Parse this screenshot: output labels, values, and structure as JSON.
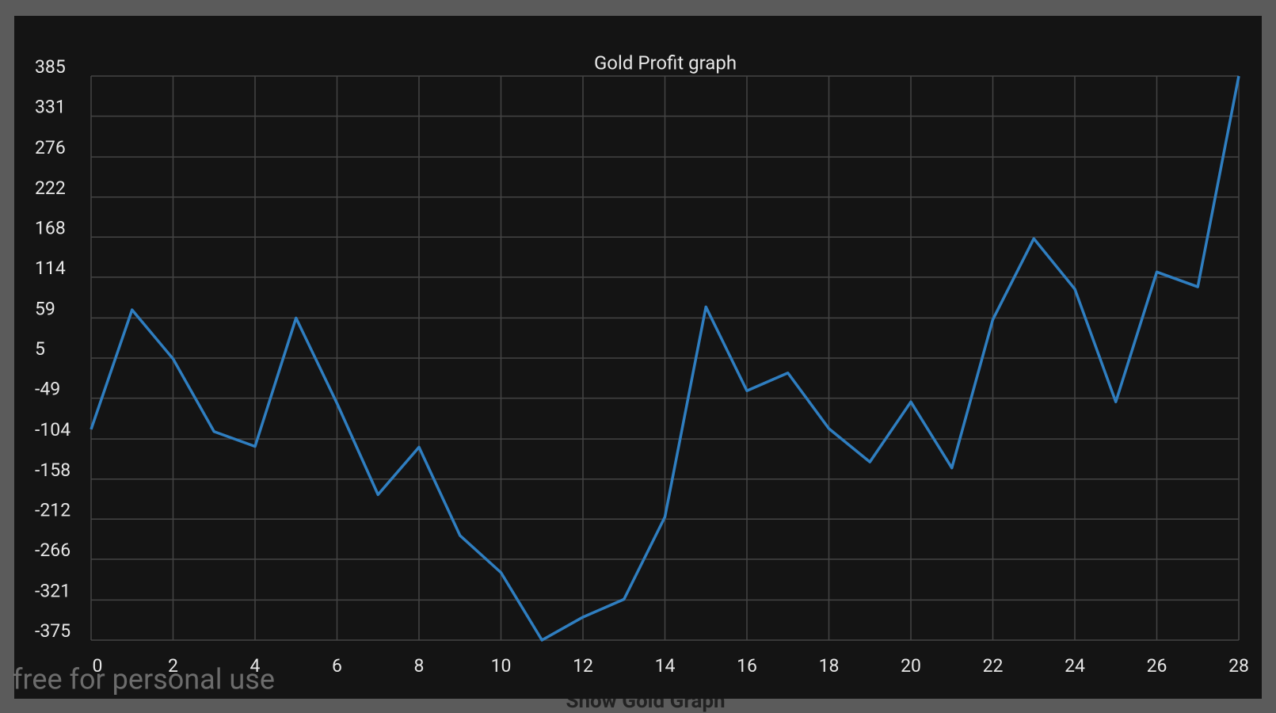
{
  "chart_data": {
    "type": "line",
    "title": "Gold Profit graph",
    "x": [
      0,
      1,
      2,
      3,
      4,
      5,
      6,
      7,
      8,
      9,
      10,
      11,
      12,
      13,
      14,
      15,
      16,
      17,
      18,
      19,
      20,
      21,
      22,
      23,
      24,
      25,
      26,
      27,
      28
    ],
    "series": [
      {
        "name": "Gold Profit",
        "color": "#2f7ec0",
        "values": [
          -91,
          70,
          4,
          -94,
          -114,
          59,
          -56,
          -179,
          -115,
          -234,
          -284,
          -375,
          -344,
          -320,
          -209,
          74,
          -39,
          -15,
          -90,
          -135,
          -54,
          -143,
          57,
          166,
          98,
          -54,
          121,
          101,
          385
        ]
      }
    ],
    "xlim": [
      0,
      28
    ],
    "xticks": [
      0,
      2,
      4,
      6,
      8,
      10,
      12,
      14,
      16,
      18,
      20,
      22,
      24,
      26,
      28
    ],
    "ylim": [
      -375,
      385
    ],
    "yticks": [
      385,
      331,
      276,
      222,
      168,
      114,
      59,
      5,
      -49,
      -104,
      -158,
      -212,
      -266,
      -321,
      -375
    ],
    "grid": true
  },
  "watermark": "free for personal use",
  "button_label": "Show Gold Graph"
}
